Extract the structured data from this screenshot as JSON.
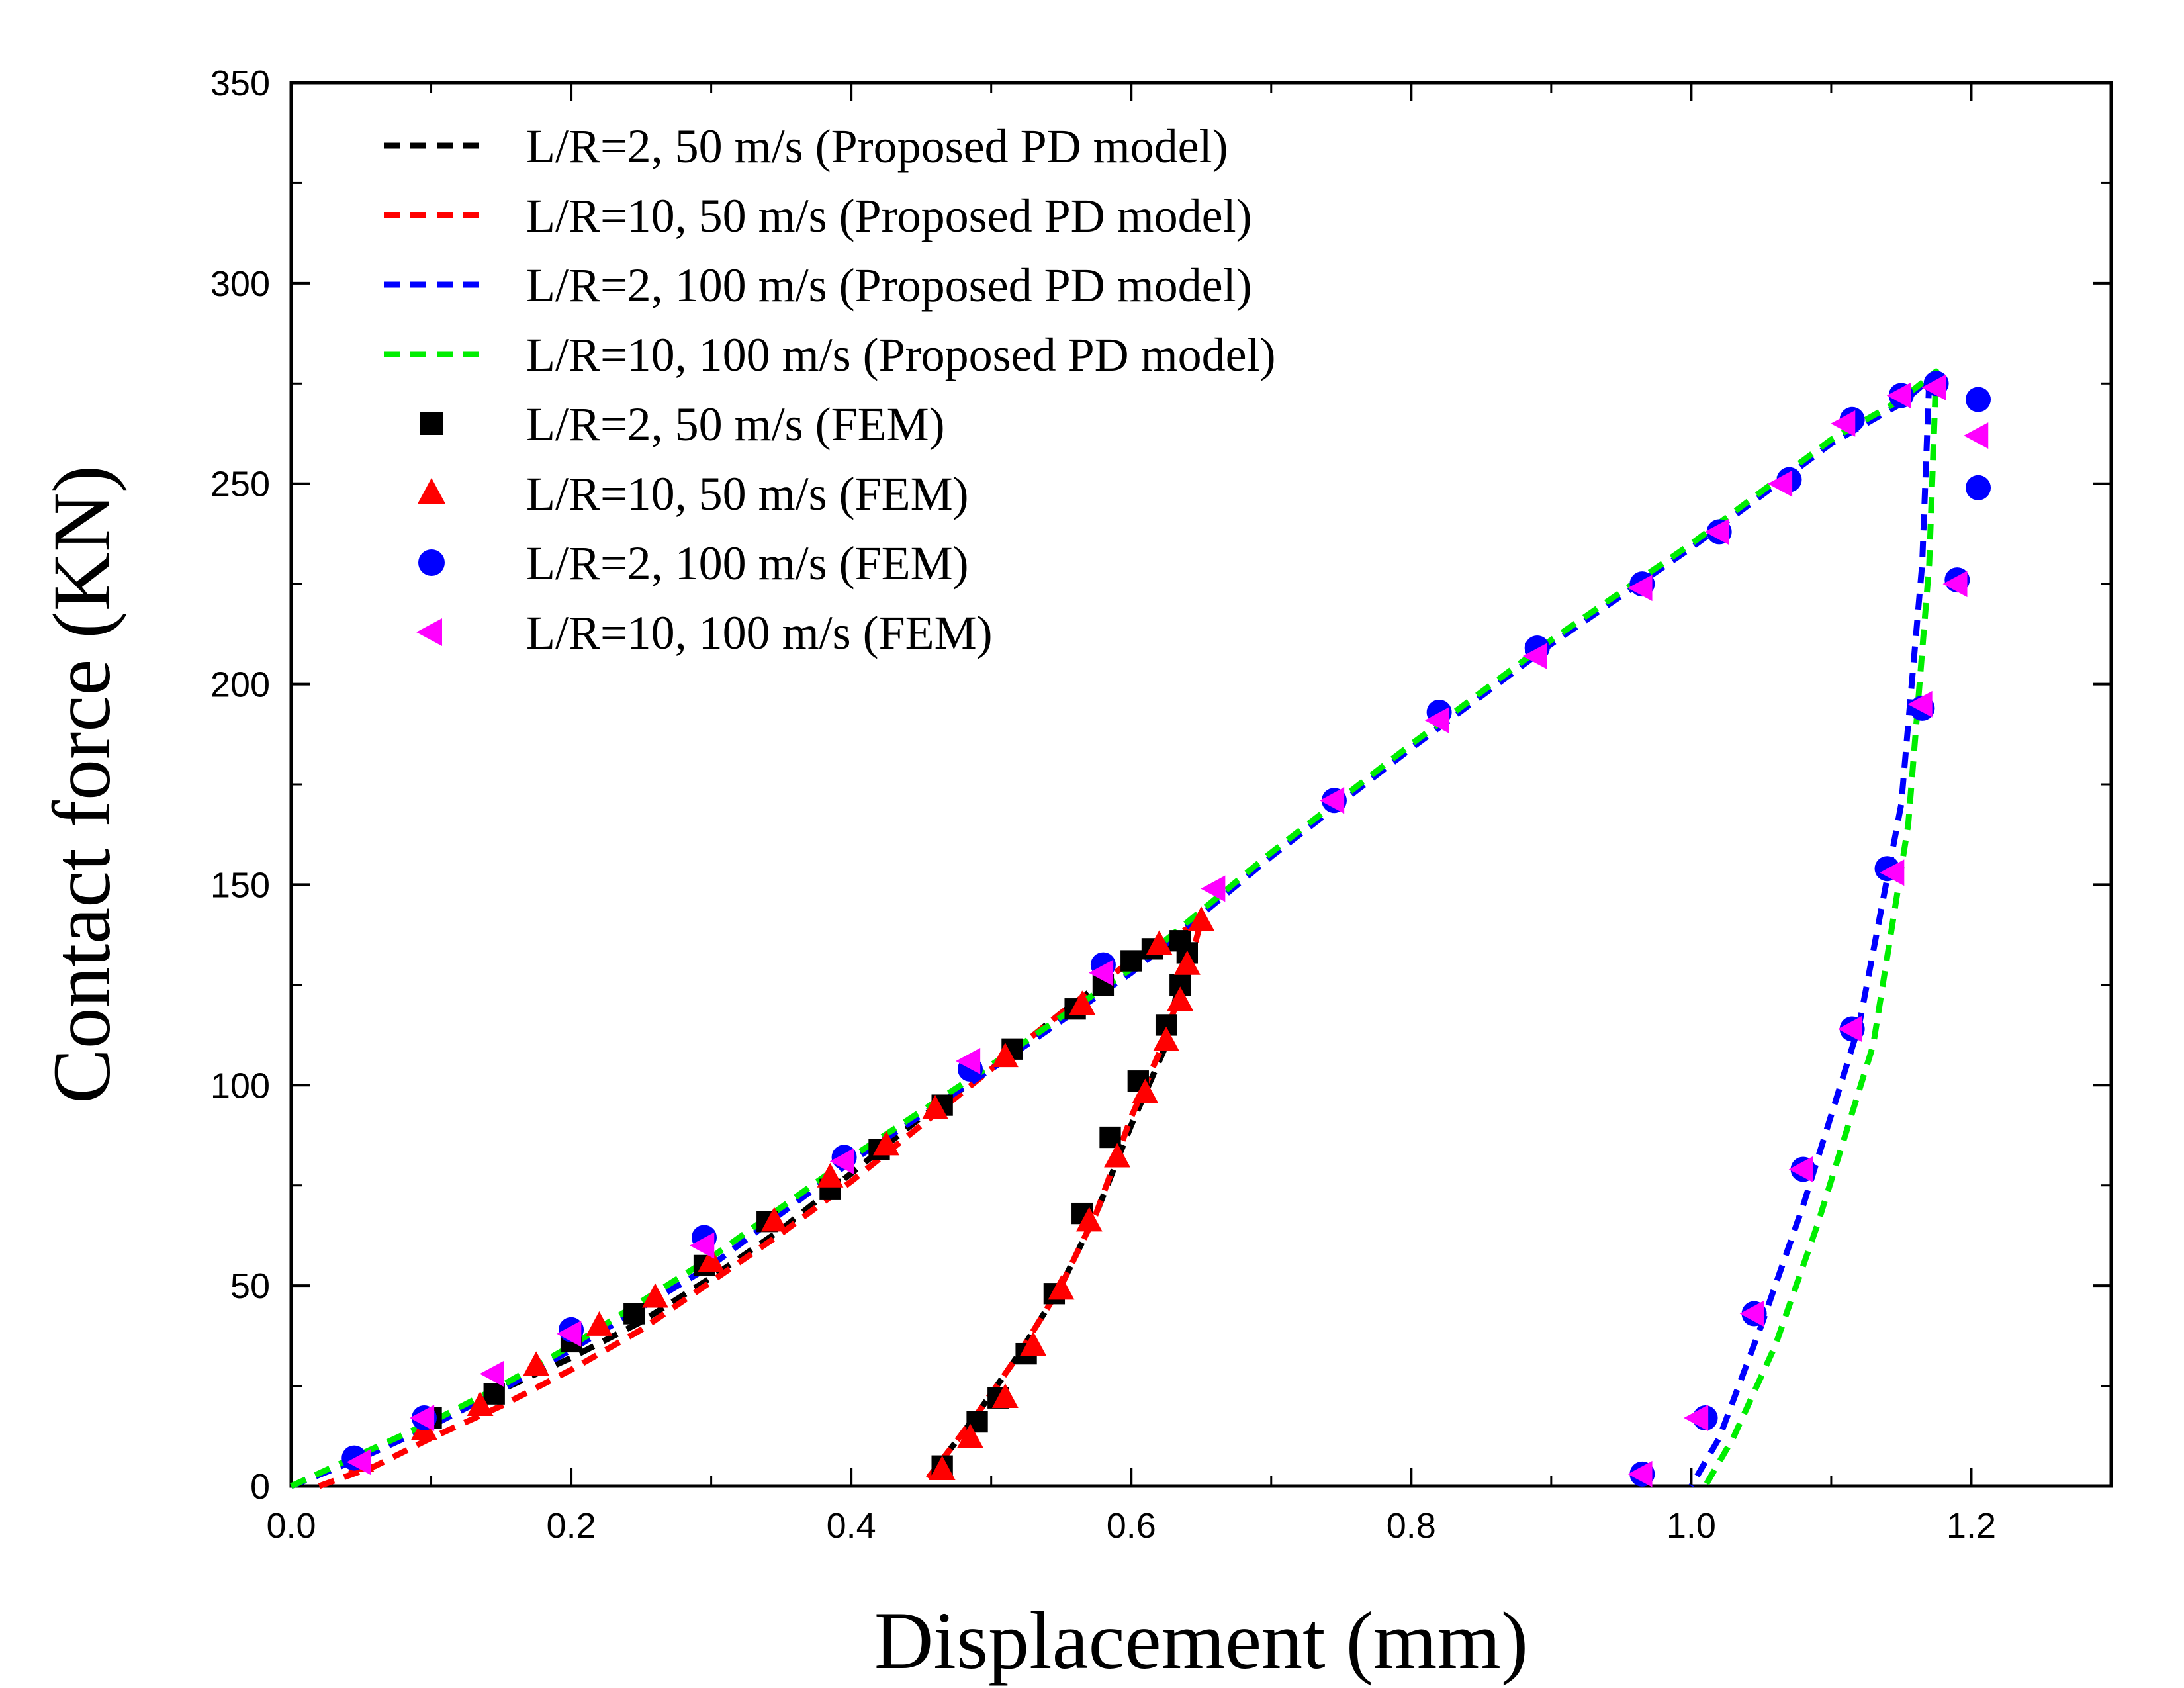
{
  "chart_data": {
    "type": "line",
    "xlabel": "Displacement (mm)",
    "ylabel": "Contact force (KN)",
    "xlim": [
      0.0,
      1.3
    ],
    "ylim": [
      0,
      350
    ],
    "x_ticks": [
      "0.0",
      "0.2",
      "0.4",
      "0.6",
      "0.8",
      "1.0",
      "1.2"
    ],
    "y_ticks": [
      "0",
      "50",
      "100",
      "150",
      "200",
      "250",
      "300",
      "350"
    ],
    "legend_position": "top-left",
    "grid": false,
    "series": [
      {
        "name": "L/R=2, 50 m/s (Proposed PD model)",
        "kind": "dashed-line",
        "color": "#000000",
        "x": [
          0.0,
          0.05,
          0.1,
          0.15,
          0.2,
          0.25,
          0.3,
          0.35,
          0.4,
          0.45,
          0.5,
          0.55,
          0.6,
          0.62,
          0.64,
          0.625,
          0.6,
          0.575,
          0.55,
          0.52,
          0.49,
          0.455
        ],
        "y": [
          0,
          7,
          15,
          24,
          32,
          41,
          52,
          64,
          78,
          92,
          104,
          118,
          131,
          134,
          136,
          110,
          90,
          68,
          50,
          33,
          18,
          2
        ]
      },
      {
        "name": "L/R=10, 50 m/s (Proposed PD model)",
        "kind": "dashed-line",
        "color": "#ff0000",
        "x": [
          0.02,
          0.06,
          0.1,
          0.15,
          0.2,
          0.25,
          0.3,
          0.35,
          0.4,
          0.45,
          0.5,
          0.55,
          0.6,
          0.63,
          0.65,
          0.64,
          0.62,
          0.6,
          0.575,
          0.55,
          0.52,
          0.49,
          0.455
        ],
        "y": [
          0,
          5,
          12,
          20,
          29,
          39,
          51,
          63,
          76,
          90,
          104,
          118,
          131,
          137,
          141,
          128,
          108,
          92,
          68,
          50,
          33,
          18,
          2
        ]
      },
      {
        "name": "L/R=2, 100 m/s (Proposed PD model)",
        "kind": "dashed-line",
        "color": "#0000ff",
        "x": [
          0.0,
          0.05,
          0.1,
          0.15,
          0.2,
          0.3,
          0.4,
          0.5,
          0.6,
          0.7,
          0.8,
          0.9,
          1.0,
          1.1,
          1.15,
          1.17,
          1.165,
          1.15,
          1.12,
          1.08,
          1.05,
          1.02,
          1.0
        ],
        "y": [
          0,
          7,
          15,
          24,
          34,
          55,
          81,
          104,
          128,
          157,
          184,
          210,
          234,
          260,
          270,
          276,
          230,
          170,
          115,
          70,
          40,
          12,
          0
        ]
      },
      {
        "name": "L/R=10, 100 m/s (Proposed PD model)",
        "kind": "dashed-line",
        "color": "#00ee00",
        "x": [
          0.0,
          0.05,
          0.1,
          0.15,
          0.2,
          0.3,
          0.4,
          0.5,
          0.6,
          0.7,
          0.8,
          0.9,
          1.0,
          1.1,
          1.15,
          1.175,
          1.17,
          1.155,
          1.13,
          1.09,
          1.06,
          1.03,
          1.01
        ],
        "y": [
          0,
          8,
          16,
          25,
          35,
          57,
          82,
          105,
          129,
          158,
          185,
          211,
          235,
          261,
          271,
          278,
          230,
          165,
          110,
          65,
          35,
          12,
          0
        ]
      },
      {
        "name": "L/R=2, 50 m/s (FEM)",
        "kind": "markers",
        "marker": "square",
        "color": "#000000",
        "x": [
          0.1,
          0.145,
          0.2,
          0.245,
          0.295,
          0.34,
          0.385,
          0.42,
          0.465,
          0.515,
          0.56,
          0.58,
          0.6,
          0.615,
          0.635,
          0.64,
          0.635,
          0.625,
          0.605,
          0.585,
          0.565,
          0.545,
          0.525,
          0.505,
          0.49,
          0.465
        ],
        "y": [
          17,
          23,
          36,
          43,
          55,
          66,
          74,
          84,
          95,
          109,
          119,
          125,
          131,
          134,
          136,
          133,
          125,
          115,
          101,
          87,
          68,
          48,
          33,
          22,
          16,
          5
        ]
      },
      {
        "name": "L/R=10, 50 m/s (FEM)",
        "kind": "markers",
        "marker": "triangle-up",
        "color": "#ff0000",
        "x": [
          0.05,
          0.095,
          0.135,
          0.175,
          0.22,
          0.26,
          0.3,
          0.345,
          0.385,
          0.425,
          0.46,
          0.51,
          0.565,
          0.62,
          0.65,
          0.64,
          0.635,
          0.625,
          0.61,
          0.59,
          0.57,
          0.55,
          0.53,
          0.51,
          0.485,
          0.465
        ],
        "y": [
          6,
          14,
          20,
          30,
          40,
          47,
          56,
          66,
          77,
          85,
          94,
          107,
          120,
          135,
          141,
          130,
          121,
          111,
          98,
          82,
          66,
          49,
          35,
          22,
          12,
          4
        ]
      },
      {
        "name": "L/R=2, 100 m/s (FEM)",
        "kind": "markers",
        "marker": "circle",
        "color": "#0000ff",
        "x": [
          0.045,
          0.095,
          0.2,
          0.295,
          0.395,
          0.485,
          0.58,
          0.745,
          0.82,
          0.89,
          0.965,
          1.02,
          1.07,
          1.115,
          1.15,
          1.175,
          1.205,
          1.205,
          1.19,
          1.165,
          1.14,
          1.115,
          1.08,
          1.045,
          1.01,
          0.965
        ],
        "y": [
          7,
          17,
          39,
          62,
          82,
          104,
          130,
          171,
          193,
          209,
          225,
          238,
          251,
          266,
          272,
          275,
          271,
          249,
          226,
          194,
          154,
          114,
          79,
          43,
          17,
          3
        ]
      },
      {
        "name": "L/R=10, 100 m/s (FEM)",
        "kind": "markers",
        "marker": "triangle-left",
        "color": "#ff00ff",
        "x": [
          0.05,
          0.095,
          0.145,
          0.2,
          0.295,
          0.395,
          0.485,
          0.58,
          0.66,
          0.745,
          0.82,
          0.89,
          0.965,
          1.02,
          1.065,
          1.11,
          1.15,
          1.175,
          1.205,
          1.19,
          1.165,
          1.145,
          1.115,
          1.08,
          1.045,
          1.005,
          0.965
        ],
        "y": [
          6,
          17,
          28,
          38,
          60,
          81,
          106,
          128,
          149,
          171,
          191,
          207,
          224,
          238,
          250,
          265,
          272,
          274,
          262,
          225,
          195,
          153,
          114,
          79,
          43,
          17,
          3
        ]
      }
    ]
  }
}
